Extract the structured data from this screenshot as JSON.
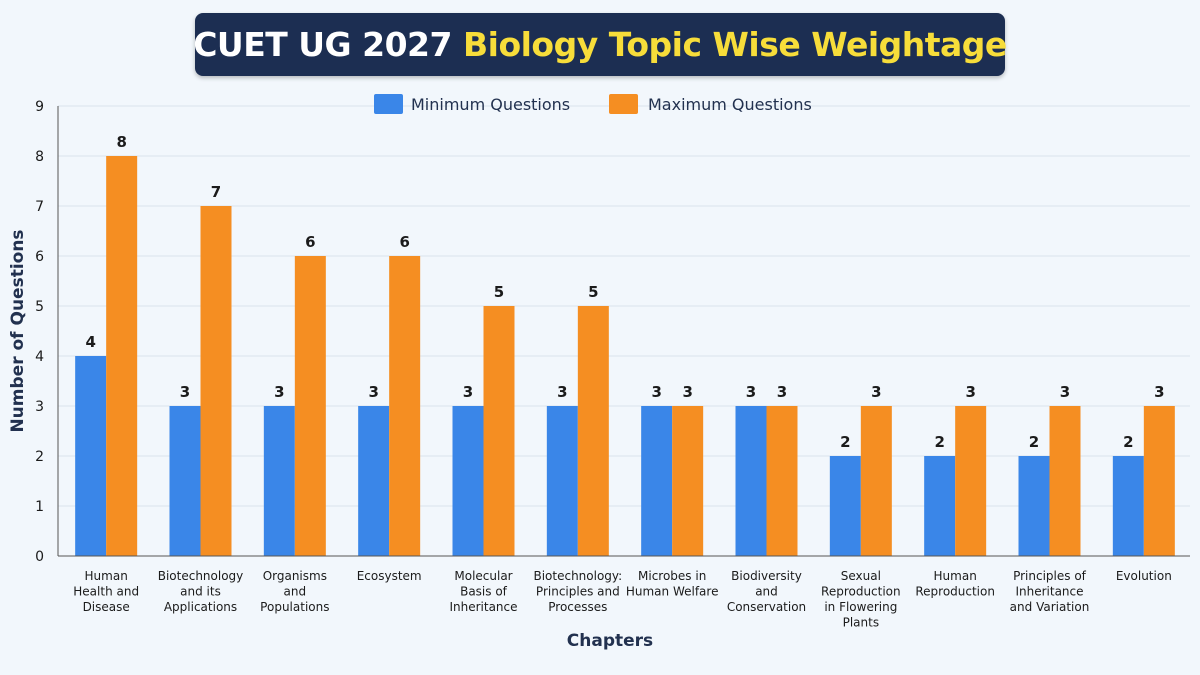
{
  "title": {
    "part1": "CUET UG 2027",
    "part2": "Biology Topic Wise Weightage"
  },
  "colors": {
    "min": "#3a86e8",
    "max": "#f58e22",
    "title_bg": "#1c2e52",
    "title_accent": "#f7dd3a"
  },
  "chart_data": {
    "type": "bar",
    "title": "CUET UG 2027 Biology Topic Wise Weightage",
    "xlabel": "Chapters",
    "ylabel": "Number of Questions",
    "ylim": [
      0,
      9
    ],
    "yticks": [
      0,
      1,
      2,
      3,
      4,
      5,
      6,
      7,
      8,
      9
    ],
    "grid": true,
    "legend": "top-center",
    "categories": [
      [
        "Human",
        "Health and",
        "Disease"
      ],
      [
        "Biotechnology",
        "and its",
        "Applications"
      ],
      [
        "Organisms",
        "and",
        "Populations"
      ],
      [
        "Ecosystem"
      ],
      [
        "Molecular",
        "Basis of",
        "Inheritance"
      ],
      [
        "Biotechnology:",
        "Principles and",
        "Processes"
      ],
      [
        "Microbes in",
        "Human Welfare"
      ],
      [
        "Biodiversity",
        "and",
        "Conservation"
      ],
      [
        "Sexual",
        "Reproduction",
        "in Flowering",
        "Plants"
      ],
      [
        "Human",
        "Reproduction"
      ],
      [
        "Principles of",
        "Inheritance",
        "and Variation"
      ],
      [
        "Evolution"
      ]
    ],
    "series": [
      {
        "name": "Minimum Questions",
        "values": [
          4,
          3,
          3,
          3,
          3,
          3,
          3,
          3,
          2,
          2,
          2,
          2
        ]
      },
      {
        "name": "Maximum Questions",
        "values": [
          8,
          7,
          6,
          6,
          5,
          5,
          3,
          3,
          3,
          3,
          3,
          3
        ]
      }
    ]
  }
}
